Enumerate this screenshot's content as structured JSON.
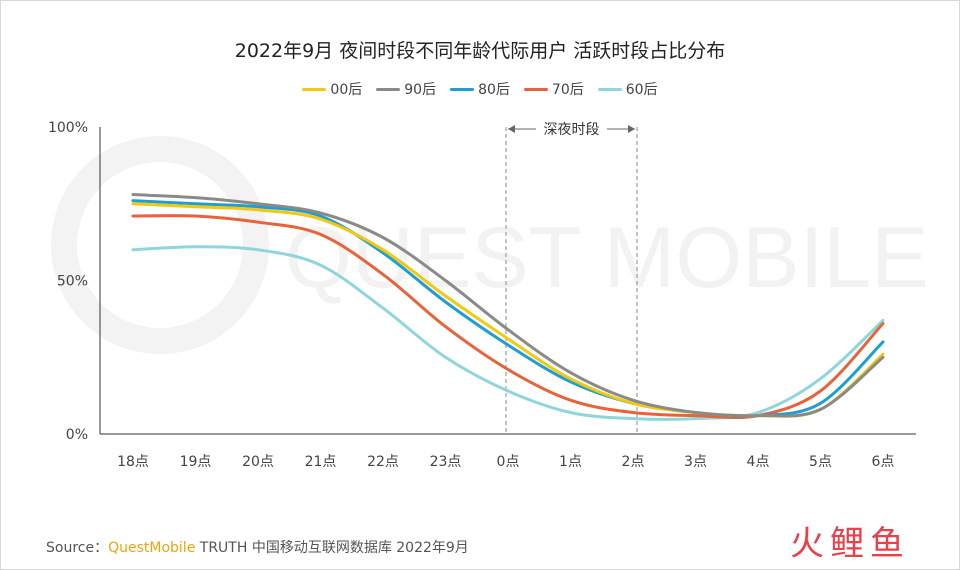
{
  "page": {
    "title": "2022年9月 夜间时段不同年龄代际用户 活跃时段占比分布",
    "source_label": "Source：",
    "source_brand": "QuestMobile",
    "source_rest": " TRUTH 中国移动互联网数据库 2022年9月",
    "watermark": "QUEST MOBILE",
    "logo_text": "火鲤鱼",
    "annotation": "深夜时段"
  },
  "colors": {
    "00后": "#f2c811",
    "90后": "#8a8a8a",
    "80后": "#1e9fd0",
    "70后": "#e8633a",
    "60后": "#8fd6dc",
    "logo": "#e9404a"
  },
  "chart_data": {
    "type": "line",
    "title": "2022年9月 夜间时段不同年龄代际用户 活跃时段占比分布",
    "xlabel": "",
    "ylabel": "",
    "categories": [
      "18点",
      "19点",
      "20点",
      "21点",
      "22点",
      "23点",
      "0点",
      "1点",
      "2点",
      "3点",
      "4点",
      "5点",
      "6点"
    ],
    "yticks": [
      "0%",
      "50%",
      "100%"
    ],
    "ylim": [
      0,
      100
    ],
    "grid": false,
    "legend_position": "top",
    "highlight_range": {
      "from": "0点",
      "to": "2点",
      "label": "深夜时段"
    },
    "series": [
      {
        "name": "00后",
        "values": [
          75,
          74,
          73,
          70,
          60,
          45,
          31,
          18,
          10,
          7,
          6,
          8,
          26
        ]
      },
      {
        "name": "90后",
        "values": [
          78,
          77,
          75,
          72,
          64,
          50,
          34,
          20,
          11,
          7,
          6,
          8,
          25
        ]
      },
      {
        "name": "80后",
        "values": [
          76,
          75,
          74,
          71,
          59,
          43,
          29,
          17,
          10,
          7,
          6,
          10,
          30
        ]
      },
      {
        "name": "70后",
        "values": [
          71,
          71,
          69,
          65,
          52,
          35,
          21,
          11,
          7,
          6,
          6,
          14,
          36
        ]
      },
      {
        "name": "60后",
        "values": [
          60,
          61,
          60,
          55,
          41,
          25,
          14,
          7,
          5,
          5,
          7,
          18,
          37
        ]
      }
    ]
  }
}
